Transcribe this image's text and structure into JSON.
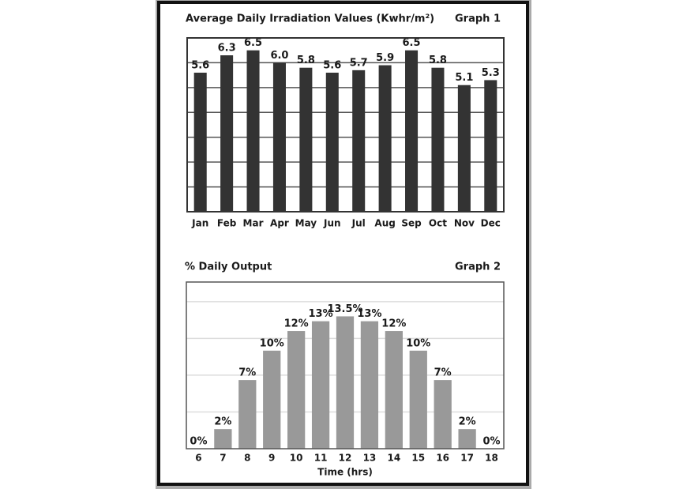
{
  "chart_data": [
    {
      "type": "bar",
      "title": "Average Daily Irradiation Values (Kwhr/m²)",
      "label": "Graph 1",
      "categories": [
        "Jan",
        "Feb",
        "Mar",
        "Apr",
        "May",
        "Jun",
        "Jul",
        "Aug",
        "Sep",
        "Oct",
        "Nov",
        "Dec"
      ],
      "values": [
        5.6,
        6.3,
        6.5,
        6.0,
        5.8,
        5.6,
        5.7,
        5.9,
        6.5,
        5.8,
        5.1,
        5.3
      ],
      "value_labels": [
        "5.6",
        "6.3",
        "6.5",
        "6.0",
        "5.8",
        "5.6",
        "5.7",
        "5.9",
        "6.5",
        "5.8",
        "5.1",
        "5.3"
      ],
      "color": "#333333",
      "ylim": [
        0,
        7
      ],
      "yticks": [
        1,
        2,
        3,
        4,
        5,
        6
      ],
      "grid": true,
      "grid_color": "#555555"
    },
    {
      "type": "bar",
      "title": "% Daily Output",
      "label": "Graph 2",
      "xlabel": "Time (hrs)",
      "categories": [
        "6",
        "7",
        "8",
        "9",
        "10",
        "11",
        "12",
        "13",
        "14",
        "15",
        "16",
        "17",
        "18"
      ],
      "values": [
        0,
        2,
        7,
        10,
        12,
        13,
        13.5,
        13,
        12,
        10,
        7,
        2,
        0
      ],
      "value_labels": [
        "0%",
        "2%",
        "7%",
        "10%",
        "12%",
        "13%",
        "13.5%",
        "13%",
        "12%",
        "10%",
        "7%",
        "2%",
        "0%"
      ],
      "color": "#999999",
      "ylim": [
        0,
        17
      ],
      "yticks": [
        3.75,
        7.5,
        11.25,
        15
      ],
      "grid": true,
      "grid_color": "#dddddd"
    }
  ]
}
